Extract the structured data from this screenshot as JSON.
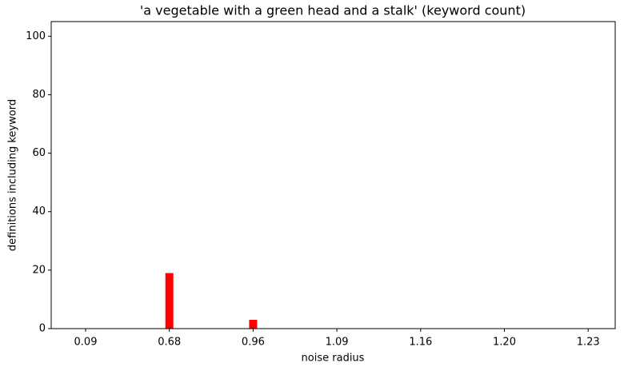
{
  "chart_data": {
    "type": "bar",
    "title": "'a vegetable with a green head and a stalk' (keyword count)",
    "x_label": "noise radius",
    "y_label": "definitions including keyword",
    "categories": [
      "0.09",
      "0.68",
      "0.96",
      "1.09",
      "1.16",
      "1.20",
      "1.23"
    ],
    "values": [
      0,
      19,
      3,
      0,
      0,
      0,
      0
    ],
    "color": "#ff0000",
    "ylim": [
      0,
      105
    ],
    "yticks": [
      0,
      20,
      40,
      60,
      80,
      100
    ]
  }
}
